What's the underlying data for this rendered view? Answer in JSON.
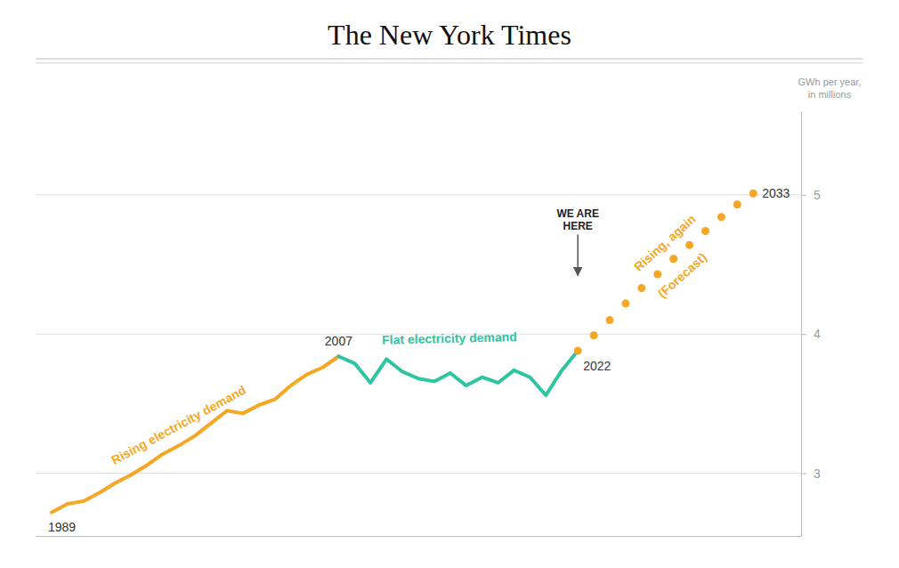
{
  "chart_data": {
    "type": "line",
    "title": "The New York Times",
    "y_label": "GWh per year,\nin millions",
    "xlim": [
      1988,
      2036
    ],
    "ylim": [
      2.55,
      5.6
    ],
    "yticks": [
      3,
      4,
      5
    ],
    "tick_labels": "y",
    "grid": true,
    "series": [
      {
        "color": "#F5A623",
        "line_style": "solid",
        "x": [
          1989,
          1990,
          1991,
          1992,
          1993,
          1994,
          1995,
          1996,
          1997,
          1998,
          1999,
          2000,
          2001,
          2002,
          2003,
          2004,
          2005,
          2006,
          2007
        ],
        "values": [
          2.72,
          2.78,
          2.8,
          2.86,
          2.93,
          2.99,
          3.06,
          3.14,
          3.2,
          3.27,
          3.36,
          3.45,
          3.43,
          3.49,
          3.53,
          3.63,
          3.71,
          3.76,
          3.84
        ]
      },
      {
        "color": "#2EC4A0",
        "line_style": "solid",
        "x": [
          2007,
          2008,
          2009,
          2010,
          2011,
          2012,
          2013,
          2014,
          2015,
          2016,
          2017,
          2018,
          2019,
          2020,
          2021,
          2022
        ],
        "values": [
          3.84,
          3.79,
          3.65,
          3.82,
          3.73,
          3.68,
          3.66,
          3.72,
          3.63,
          3.69,
          3.65,
          3.74,
          3.69,
          3.56,
          3.74,
          3.88
        ]
      },
      {
        "color": "#F5A623",
        "type": "scatter",
        "marker": "circle",
        "x": [
          2022,
          2023,
          2024,
          2025,
          2026,
          2027,
          2028,
          2029,
          2030,
          2031,
          2032,
          2033
        ],
        "values": [
          3.88,
          3.99,
          4.1,
          4.22,
          4.33,
          4.43,
          4.54,
          4.64,
          4.74,
          4.84,
          4.93,
          5.01
        ]
      }
    ],
    "annotations": [
      {
        "text": "1989",
        "x": 1989
      },
      {
        "text": "2007",
        "x": 2007
      },
      {
        "text": "2022",
        "x": 2022
      },
      {
        "text": "2033",
        "x": 2033
      },
      {
        "text": "WE ARE\nHERE",
        "x": 2022,
        "y": 4.42
      },
      {
        "text": "Rising electricity demand",
        "x": 1997.5,
        "y": 3.24,
        "color": "#F5A623"
      },
      {
        "text": "Flat electricity demand",
        "x": 2014.0,
        "y": 3.97,
        "color": "#2EC4A0"
      },
      {
        "text": "Rising, again",
        "x": 2028.2,
        "y": 4.65,
        "color": "#F5A623"
      },
      {
        "text": "(Forecast)",
        "x": 2027.8,
        "y": 4.45,
        "color": "#F5A623"
      }
    ]
  }
}
